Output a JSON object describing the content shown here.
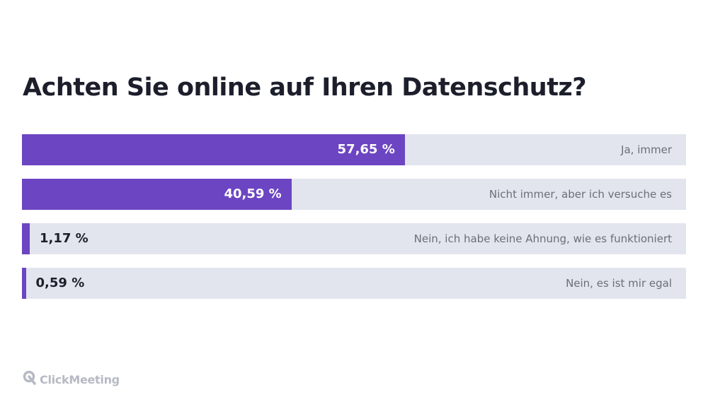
{
  "chart_data": {
    "type": "bar",
    "orientation": "horizontal",
    "title": "Achten Sie online auf Ihren Datenschutz?",
    "categories": [
      "Ja, immer",
      "Nicht immer, aber ich versuche es",
      "Nein, ich habe keine Ahnung, wie es funktioniert",
      "Nein, es ist mir egal"
    ],
    "values": [
      57.65,
      40.59,
      1.17,
      0.59
    ],
    "value_labels": [
      "57,65 %",
      "40,59 %",
      "1,17 %",
      "0,59 %"
    ],
    "xlim": [
      0,
      100
    ],
    "grid": false,
    "legend": "none"
  },
  "colors": {
    "bar": "#6c45c2",
    "track": "#e2e5ee",
    "title": "#1c1f2b",
    "label": "#6b6e7a",
    "brand": "#b7bac4"
  },
  "brand": {
    "name": "ClickMeeting",
    "icon": "clickmeeting-logo-icon"
  }
}
